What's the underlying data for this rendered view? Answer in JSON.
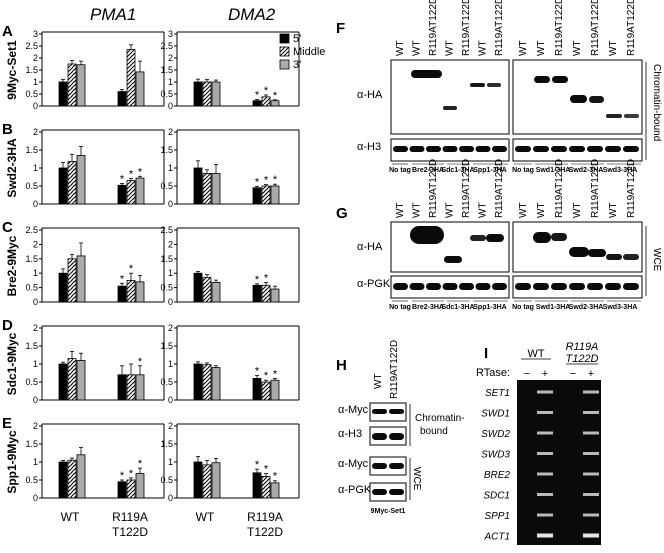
{
  "genes": [
    "PMA1",
    "DMA2"
  ],
  "legend": [
    "5'",
    "Middle",
    "3'"
  ],
  "panels": [
    {
      "letter": "A",
      "label": "9Myc-Set1",
      "yticks": [
        "0",
        "0.5",
        "1",
        "1.5",
        "2",
        "2.5",
        "3"
      ],
      "ymax": 3,
      "pma1": {
        "wt": [
          1.0,
          1.75,
          1.72
        ],
        "mut": [
          0.6,
          2.35,
          1.42
        ],
        "wt_err": [
          0.1,
          0.15,
          0.15
        ],
        "mut_err": [
          0.08,
          0.2,
          0.45
        ],
        "wt_star": [
          false,
          false,
          false
        ],
        "mut_star": [
          false,
          false,
          false
        ]
      },
      "dma2": {
        "wt": [
          1.0,
          1.0,
          1.0
        ],
        "mut": [
          0.22,
          0.38,
          0.22
        ],
        "wt_err": [
          0.12,
          0.1,
          0.08
        ],
        "mut_err": [
          0.05,
          0.08,
          0.04
        ],
        "wt_star": [
          false,
          false,
          false
        ],
        "mut_star": [
          true,
          true,
          true
        ]
      }
    },
    {
      "letter": "B",
      "label": "Swd2-3HA",
      "yticks": [
        "0",
        "0.5",
        "1",
        "1.5",
        "2"
      ],
      "ymax": 2,
      "pma1": {
        "wt": [
          1.0,
          1.18,
          1.35
        ],
        "mut": [
          0.52,
          0.65,
          0.72
        ],
        "wt_err": [
          0.15,
          0.2,
          0.25
        ],
        "mut_err": [
          0.05,
          0.06,
          0.05
        ],
        "wt_star": [
          false,
          false,
          false
        ],
        "mut_star": [
          true,
          true,
          true
        ]
      },
      "dma2": {
        "wt": [
          1.0,
          0.85,
          0.85
        ],
        "mut": [
          0.45,
          0.5,
          0.5
        ],
        "wt_err": [
          0.2,
          0.1,
          0.25
        ],
        "mut_err": [
          0.04,
          0.04,
          0.05
        ],
        "wt_star": [
          false,
          false,
          false
        ],
        "mut_star": [
          true,
          true,
          true
        ]
      }
    },
    {
      "letter": "C",
      "label": "Bre2-9Myc",
      "yticks": [
        "0",
        "0.5",
        "1",
        "1.5",
        "2",
        "2.5"
      ],
      "ymax": 2.5,
      "pma1": {
        "wt": [
          1.0,
          1.5,
          1.6
        ],
        "mut": [
          0.55,
          0.75,
          0.7
        ],
        "wt_err": [
          0.15,
          0.15,
          0.45
        ],
        "mut_err": [
          0.1,
          0.25,
          0.22
        ],
        "wt_star": [
          false,
          false,
          false
        ],
        "mut_star": [
          true,
          true,
          false
        ]
      },
      "dma2": {
        "wt": [
          1.0,
          0.85,
          0.68
        ],
        "mut": [
          0.58,
          0.58,
          0.45
        ],
        "wt_err": [
          0.06,
          0.1,
          0.08
        ],
        "mut_err": [
          0.05,
          0.1,
          0.1
        ],
        "wt_star": [
          false,
          false,
          false
        ],
        "mut_star": [
          true,
          true,
          false
        ]
      }
    },
    {
      "letter": "D",
      "label": "Sdc1-9Myc",
      "yticks": [
        "0",
        "0.5",
        "1",
        "1.5",
        "2"
      ],
      "ymax": 2,
      "pma1": {
        "wt": [
          1.0,
          1.15,
          1.1
        ],
        "mut": [
          0.7,
          0.7,
          0.7
        ],
        "wt_err": [
          0.05,
          0.2,
          0.2
        ],
        "mut_err": [
          0.25,
          0.3,
          0.25
        ],
        "wt_star": [
          false,
          false,
          false
        ],
        "mut_star": [
          false,
          false,
          true
        ]
      },
      "dma2": {
        "wt": [
          1.0,
          0.98,
          0.9
        ],
        "mut": [
          0.6,
          0.5,
          0.55
        ],
        "wt_err": [
          0.06,
          0.05,
          0.05
        ],
        "mut_err": [
          0.08,
          0.05,
          0.05
        ],
        "wt_star": [
          false,
          false,
          false
        ],
        "mut_star": [
          true,
          true,
          true
        ]
      }
    },
    {
      "letter": "E",
      "label": "Spp1-9Myc",
      "yticks": [
        "0",
        "0.5",
        "1",
        "1.5",
        "2"
      ],
      "ymax": 2,
      "pma1": {
        "wt": [
          1.0,
          1.05,
          1.2
        ],
        "mut": [
          0.45,
          0.5,
          0.68
        ],
        "wt_err": [
          0.04,
          0.06,
          0.2
        ],
        "mut_err": [
          0.05,
          0.06,
          0.15
        ],
        "wt_star": [
          false,
          false,
          false
        ],
        "mut_star": [
          true,
          true,
          true
        ]
      },
      "dma2": {
        "wt": [
          1.0,
          0.92,
          0.98
        ],
        "mut": [
          0.7,
          0.6,
          0.42
        ],
        "wt_err": [
          0.15,
          0.12,
          0.12
        ],
        "mut_err": [
          0.1,
          0.08,
          0.06
        ],
        "wt_star": [
          false,
          false,
          false
        ],
        "mut_star": [
          true,
          true,
          true
        ]
      }
    }
  ],
  "xlabels": {
    "wt": "WT",
    "mut1": "R119A",
    "mut2": "T122D"
  },
  "blotF": {
    "letter": "F",
    "lanes_left": [
      "WT",
      "WT",
      "R119AT122D",
      "WT",
      "R119AT122D",
      "WT",
      "R119AT122D"
    ],
    "lanes_right": [
      "WT",
      "WT",
      "R119AT122D",
      "WT",
      "R119AT122D",
      "WT",
      "R119AT122D"
    ],
    "row1": "α-HA",
    "row2": "α-H3",
    "side": "Chromatin-bound",
    "groups_left": [
      "No tag",
      "Bre2-3HA",
      "Sdc1-3HA",
      "Spp1-3HA"
    ],
    "groups_right": [
      "No tag",
      "Swd1-3HA",
      "Swd2-3HA",
      "Swd3-3HA"
    ]
  },
  "blotG": {
    "letter": "G",
    "lanes_left": [
      "WT",
      "WT",
      "R119AT122D",
      "WT",
      "R119AT122D",
      "WT",
      "R119AT122D"
    ],
    "lanes_right": [
      "WT",
      "WT",
      "R119AT122D",
      "WT",
      "R119AT122D",
      "WT",
      "R119AT122D"
    ],
    "row1": "α-HA",
    "row2": "α-PGK1",
    "side": "WCE",
    "groups_left": [
      "No tag",
      "Bre2-3HA",
      "Sdc1-3HA",
      "Spp1-3HA"
    ],
    "groups_right": [
      "No tag",
      "Swd1-3HA",
      "Swd2-3HA",
      "Swd3-3HA"
    ]
  },
  "blotH": {
    "letter": "H",
    "lanes": [
      "WT",
      "R119AT122D"
    ],
    "rows": [
      "α-Myc",
      "α-H3",
      "α-Myc",
      "α-PGK1"
    ],
    "side1a": "Chromatin-",
    "side1b": "bound",
    "side2": "WCE",
    "caption": "9Myc-Set1"
  },
  "blotI": {
    "letter": "I",
    "wt": "WT",
    "mut1": "R119A",
    "mut2": "T122D",
    "rtase": "RTase:",
    "minus": "−",
    "plus": "+",
    "genes": [
      "SET1",
      "SWD1",
      "SWD2",
      "SWD3",
      "BRE2",
      "SDC1",
      "SPP1",
      "ACT1"
    ]
  },
  "colors": {
    "bar1": "#000000",
    "bar3": "#aaaaaa",
    "gel": "#0a0a0a"
  }
}
